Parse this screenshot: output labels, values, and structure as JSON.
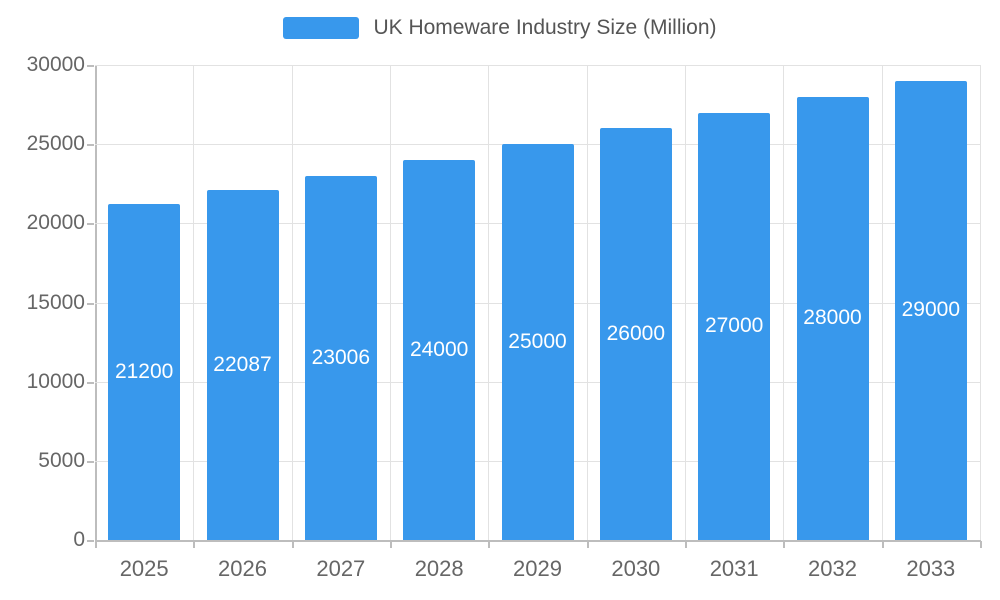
{
  "legend": {
    "label": "UK Homeware Industry Size (Million)"
  },
  "chart_data": {
    "type": "bar",
    "title": "UK Homeware Industry Size (Million)",
    "categories": [
      "2025",
      "2026",
      "2027",
      "2028",
      "2029",
      "2030",
      "2031",
      "2032",
      "2033"
    ],
    "values": [
      21200,
      22087,
      23006,
      24000,
      25000,
      26000,
      27000,
      28000,
      29000
    ],
    "xlabel": "",
    "ylabel": "",
    "ylim": [
      0,
      30000
    ],
    "ytick_step": 5000,
    "ytick_labels": [
      "0",
      "5000",
      "10000",
      "15000",
      "20000",
      "25000",
      "30000"
    ],
    "grid": true,
    "legend_position": "top",
    "bar_color": "#3898EC",
    "bar_label_color": "#FFFFFF",
    "grid_color": "#E2E2E2",
    "axis_color": "#BDBDBD",
    "tick_label_color": "#666666"
  }
}
